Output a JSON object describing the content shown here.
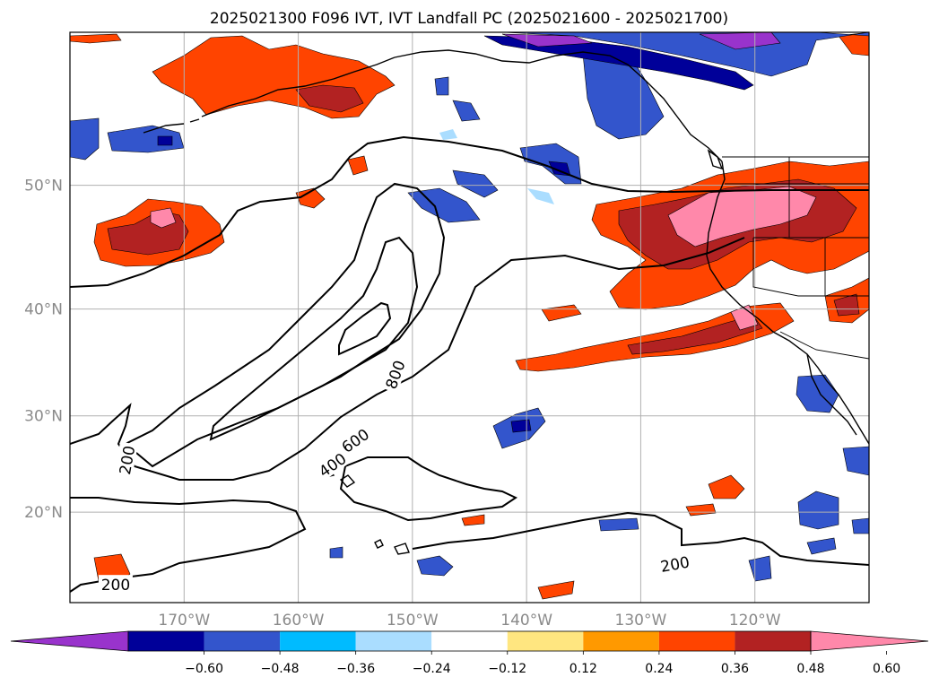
{
  "title": "2025021300 F096 IVT, IVT Landfall PC (2025021600 - 2025021700)",
  "map": {
    "lon_range": [
      -180,
      -110
    ],
    "lat_range": [
      10,
      60
    ],
    "lon_ticks": [
      {
        "value": -170,
        "label": "170°W"
      },
      {
        "value": -160,
        "label": "160°W"
      },
      {
        "value": -150,
        "label": "150°W"
      },
      {
        "value": -140,
        "label": "140°W"
      },
      {
        "value": -130,
        "label": "130°W"
      },
      {
        "value": -120,
        "label": "120°W"
      }
    ],
    "lat_ticks": [
      {
        "value": 50,
        "label": "50°N"
      },
      {
        "value": 40,
        "label": "40°N"
      },
      {
        "value": 30,
        "label": "30°N"
      },
      {
        "value": 20,
        "label": "20°N"
      }
    ],
    "grid": true,
    "contour_labels": [
      {
        "text": "800",
        "lon": -151.5,
        "lat": 34,
        "rotate": -70
      },
      {
        "text": "600",
        "lon": -155,
        "lat": 27.5,
        "rotate": -35
      },
      {
        "text": "400",
        "lon": -157,
        "lat": 25,
        "rotate": -35
      },
      {
        "text": "200",
        "lon": -175,
        "lat": 25.5,
        "rotate": -80
      },
      {
        "text": "200",
        "lon": -176,
        "lat": 12,
        "rotate": 0
      },
      {
        "text": "200",
        "lon": -127,
        "lat": 14.3,
        "rotate": -10
      }
    ]
  },
  "colorbar": {
    "colors": [
      "#9933cc",
      "#000099",
      "#3355cc",
      "#00bbff",
      "#aaddff",
      "#ffffff",
      "#ffe680",
      "#ff9900",
      "#ff4400",
      "#b22222",
      "#ff88aa"
    ],
    "tick_labels": [
      "−0.60",
      "−0.48",
      "−0.36",
      "−0.24",
      "−0.12",
      "0.12",
      "0.24",
      "0.36",
      "0.48",
      "0.60"
    ],
    "extend": "both"
  }
}
